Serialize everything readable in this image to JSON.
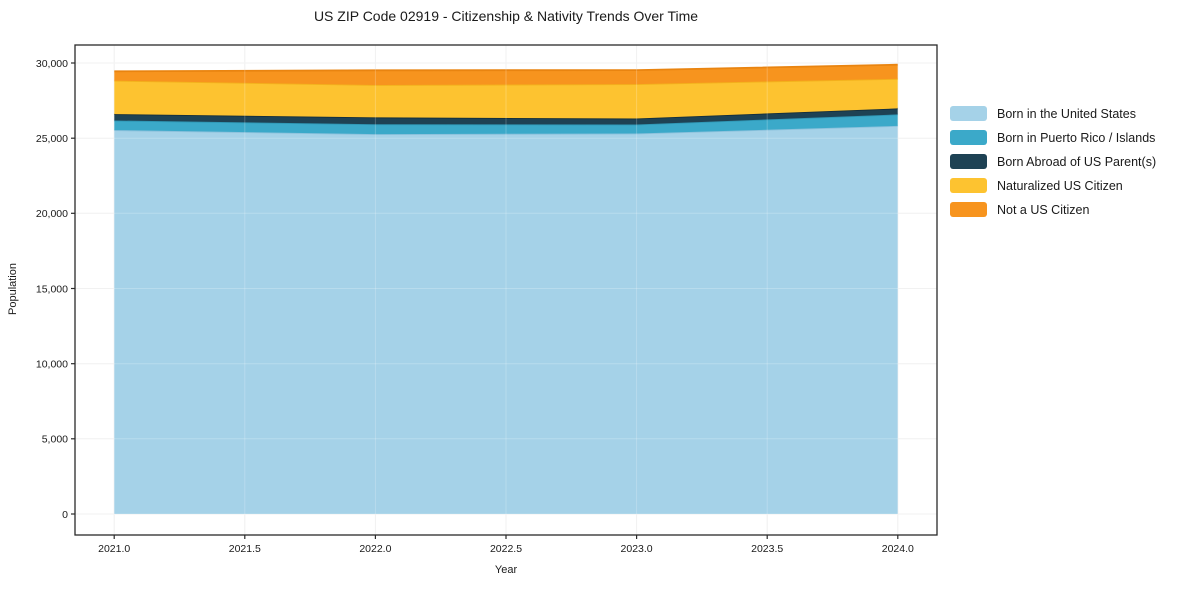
{
  "chart_data": {
    "type": "area",
    "stacked": true,
    "title": "US ZIP Code 02919 - Citizenship & Nativity Trends Over Time",
    "xlabel": "Year",
    "ylabel": "Population",
    "x": [
      2021,
      2022,
      2023,
      2024
    ],
    "series": [
      {
        "name": "Born in the United States",
        "color": "#A5D2E8",
        "edge_color": "#8BC1DC",
        "values": [
          25540,
          25270,
          25310,
          25820
        ]
      },
      {
        "name": "Born in Puerto Rico / Islands",
        "color": "#3BA9C9",
        "edge_color": "#2F96B4",
        "values": [
          640,
          660,
          600,
          760
        ]
      },
      {
        "name": "Born Abroad of US Parent(s)",
        "color": "#1E4254",
        "edge_color": "#142E3C",
        "values": [
          420,
          450,
          400,
          400
        ]
      },
      {
        "name": "Naturalized US Citizen",
        "color": "#FDC330",
        "edge_color": "#F3B11C",
        "values": [
          2230,
          2160,
          2290,
          1970
        ]
      },
      {
        "name": "Not a US Citizen",
        "color": "#F7941E",
        "edge_color": "#E98410",
        "values": [
          620,
          980,
          930,
          940
        ]
      }
    ],
    "xlim": [
      2020.85,
      2024.15
    ],
    "ylim": [
      -1400,
      31200
    ],
    "xticks": {
      "values": [
        2021.0,
        2021.5,
        2022.0,
        2022.5,
        2023.0,
        2023.5,
        2024.0
      ],
      "labels": [
        "2021.0",
        "2021.5",
        "2022.0",
        "2022.5",
        "2023.0",
        "2023.5",
        "2024.0"
      ]
    },
    "yticks": {
      "values": [
        0,
        5000,
        10000,
        15000,
        20000,
        25000,
        30000
      ],
      "labels": [
        "0",
        "5,000",
        "10,000",
        "15,000",
        "20,000",
        "25,000",
        "30,000"
      ]
    },
    "grid": true,
    "legend_position": "right",
    "axis_color": "#2a2a2a",
    "grid_color": "#ededed"
  }
}
